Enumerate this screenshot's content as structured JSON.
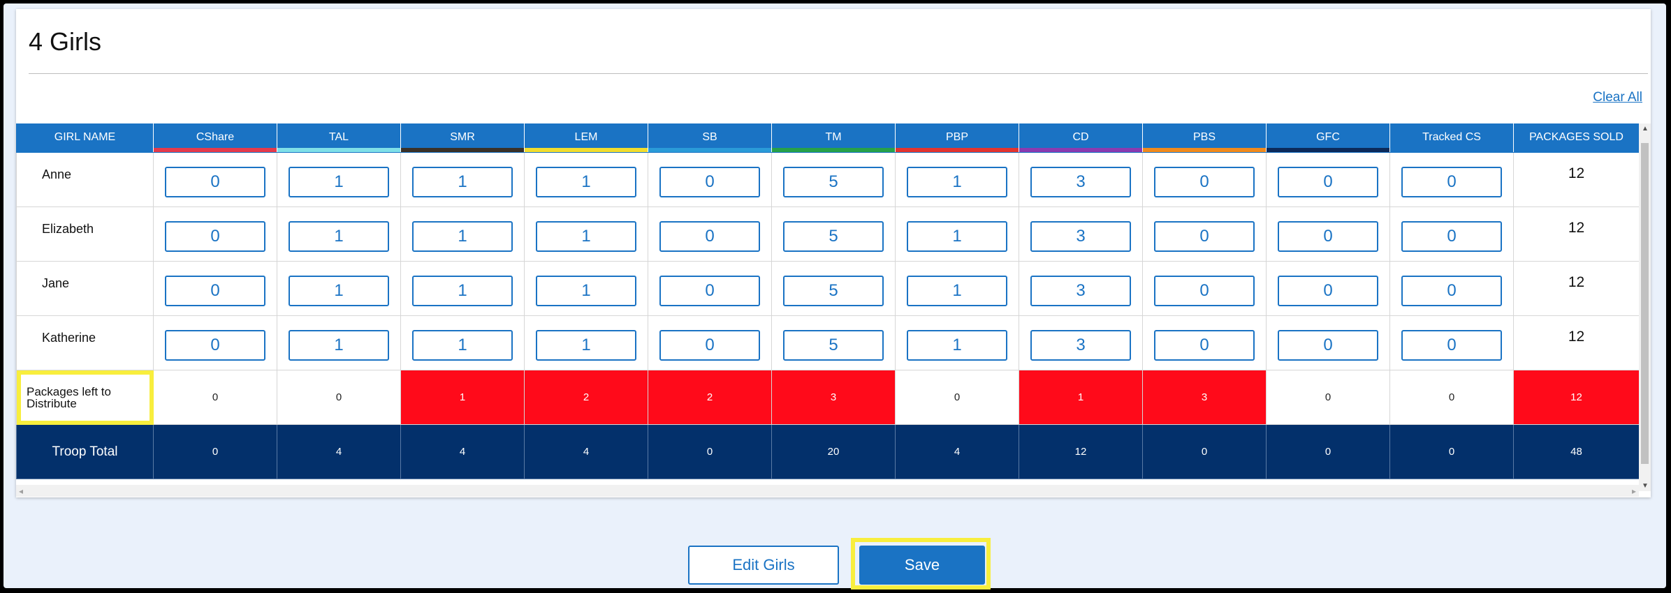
{
  "header": {
    "title": "4 Girls",
    "clear_all": "Clear All"
  },
  "columns": [
    {
      "label": "GIRL NAME",
      "color": "#1a73c4"
    },
    {
      "label": "CShare",
      "color": "#e53a4b"
    },
    {
      "label": "TAL",
      "color": "#7fe0e8"
    },
    {
      "label": "SMR",
      "color": "#3a3128"
    },
    {
      "label": "LEM",
      "color": "#f2dd2e"
    },
    {
      "label": "SB",
      "color": "#2a9bd8"
    },
    {
      "label": "TM",
      "color": "#27a149"
    },
    {
      "label": "PBP",
      "color": "#e3342f"
    },
    {
      "label": "CD",
      "color": "#8a3ab0"
    },
    {
      "label": "PBS",
      "color": "#f08a1d"
    },
    {
      "label": "GFC",
      "color": "#0c2a5a"
    },
    {
      "label": "Tracked CS",
      "color": "#1a73c4"
    },
    {
      "label": "PACKAGES SOLD",
      "color": "#1a73c4"
    }
  ],
  "girls": [
    {
      "name": "Anne",
      "values": [
        "0",
        "1",
        "1",
        "1",
        "0",
        "5",
        "1",
        "3",
        "0",
        "0",
        "0"
      ],
      "sold": "12"
    },
    {
      "name": "Elizabeth",
      "values": [
        "0",
        "1",
        "1",
        "1",
        "0",
        "5",
        "1",
        "3",
        "0",
        "0",
        "0"
      ],
      "sold": "12"
    },
    {
      "name": "Jane",
      "values": [
        "0",
        "1",
        "1",
        "1",
        "0",
        "5",
        "1",
        "3",
        "0",
        "0",
        "0"
      ],
      "sold": "12"
    },
    {
      "name": "Katherine",
      "values": [
        "0",
        "1",
        "1",
        "1",
        "0",
        "5",
        "1",
        "3",
        "0",
        "0",
        "0"
      ],
      "sold": "12"
    }
  ],
  "left_row": {
    "label": "Packages left to Distribute",
    "values": [
      "0",
      "0",
      "1",
      "2",
      "2",
      "3",
      "0",
      "1",
      "3",
      "0",
      "0",
      "12"
    ],
    "alert": [
      false,
      false,
      true,
      true,
      true,
      true,
      false,
      true,
      true,
      false,
      false,
      true
    ]
  },
  "total_row": {
    "label": "Troop Total",
    "values": [
      "0",
      "4",
      "4",
      "4",
      "0",
      "20",
      "4",
      "12",
      "0",
      "0",
      "0",
      "48"
    ]
  },
  "buttons": {
    "edit": "Edit Girls",
    "save": "Save"
  }
}
